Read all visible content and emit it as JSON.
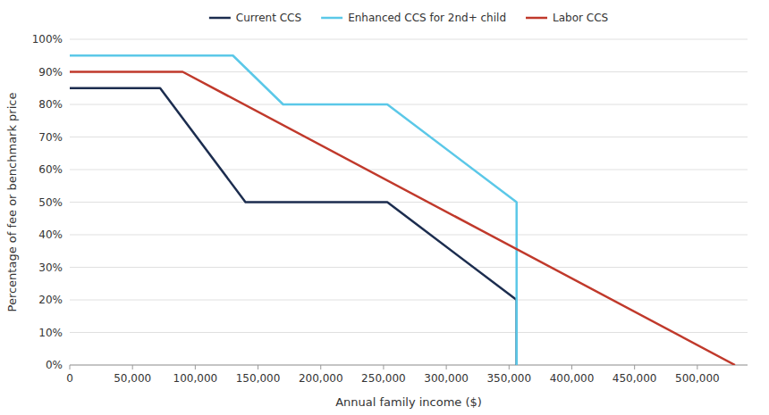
{
  "chart_data": {
    "type": "line",
    "xlabel": "Annual family income ($)",
    "ylabel": "Percentage of fee or benchmark price",
    "xlim": [
      0,
      540000
    ],
    "ylim": [
      0,
      1.0
    ],
    "xticks": [
      0,
      {
        "value": 50000,
        "label": "50,000"
      },
      {
        "value": 100000,
        "label": "100,000"
      },
      {
        "value": 150000,
        "label": "150,000"
      },
      {
        "value": 200000,
        "label": "200,000"
      },
      {
        "value": 250000,
        "label": "250,000"
      },
      {
        "value": 300000,
        "label": "300,000"
      },
      {
        "value": 350000,
        "label": "350,000"
      },
      {
        "value": 400000,
        "label": "400,000"
      },
      {
        "value": 450000,
        "label": "450,000"
      },
      {
        "value": 500000,
        "label": "500,000"
      }
    ],
    "yticks": [
      {
        "value": 0,
        "label": "0%"
      },
      {
        "value": 0.1,
        "label": "10%"
      },
      {
        "value": 0.2,
        "label": "20%"
      },
      {
        "value": 0.3,
        "label": "30%"
      },
      {
        "value": 0.4,
        "label": "40%"
      },
      {
        "value": 0.5,
        "label": "50%"
      },
      {
        "value": 0.6,
        "label": "60%"
      },
      {
        "value": 0.7,
        "label": "70%"
      },
      {
        "value": 0.8,
        "label": "80%"
      },
      {
        "value": 0.9,
        "label": "90%"
      },
      {
        "value": 1.0,
        "label": "100%"
      }
    ],
    "grid": true,
    "legend": "top",
    "series": [
      {
        "name": "Current CCS",
        "color": "#1c2d4f",
        "x": [
          0,
          72000,
          140000,
          253000,
          356000,
          356000
        ],
        "values": [
          0.85,
          0.85,
          0.5,
          0.5,
          0.2,
          0.0
        ]
      },
      {
        "name": "Enhanced CCS for 2nd+ child",
        "color": "#5bc8e8",
        "x": [
          0,
          130000,
          170000,
          253000,
          356000,
          356000
        ],
        "values": [
          0.95,
          0.95,
          0.8,
          0.8,
          0.5,
          0.0
        ]
      },
      {
        "name": "Labor CCS",
        "color": "#c0392b",
        "x": [
          0,
          90000,
          530000
        ],
        "values": [
          0.9,
          0.9,
          0.0
        ]
      }
    ]
  }
}
